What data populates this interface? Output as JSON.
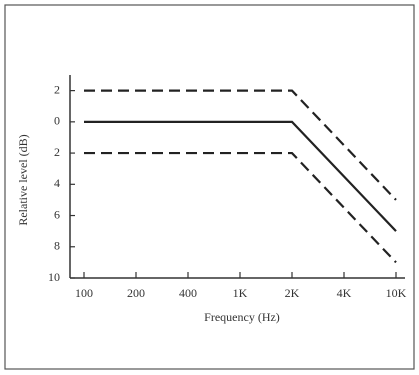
{
  "chart_data": {
    "type": "line",
    "x_label": "Frequency (Hz)",
    "y_label": "Relative level (dB)",
    "categories": [
      "100",
      "200",
      "400",
      "1K",
      "2K",
      "4K",
      "10K"
    ],
    "series": [
      {
        "color": "#222",
        "style": "dashed",
        "values": [
          2,
          2,
          2,
          2,
          2,
          -1.5,
          -5
        ]
      },
      {
        "color": "#222",
        "style": "solid",
        "values": [
          0,
          0,
          0,
          0,
          0,
          -3.5,
          -7
        ]
      },
      {
        "color": "#222",
        "style": "dashed",
        "values": [
          -2,
          -2,
          -2,
          -2,
          -2,
          -5.5,
          -9
        ]
      }
    ],
    "ylim": [
      -10,
      3
    ],
    "yticks": [
      2,
      0,
      {
        "value": -2,
        "label": "2"
      },
      {
        "value": -4,
        "label": "4"
      },
      {
        "value": -6,
        "label": "6"
      },
      {
        "value": -8,
        "label": "8"
      },
      {
        "value": -10,
        "label": "10"
      }
    ]
  }
}
